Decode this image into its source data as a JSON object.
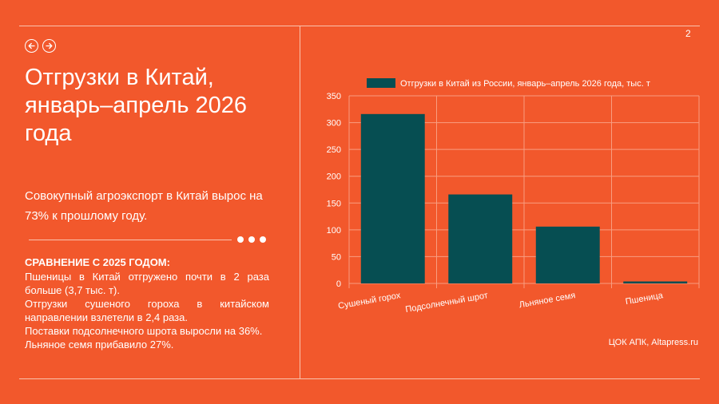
{
  "page_number": "2",
  "title": "Отгрузки в Китай, январь–апрель 2026 года",
  "subtitle": "Совокупный агроэкспорт в Китай вырос на 73% к прошлому году.",
  "comparison": {
    "heading": "СРАВНЕНИЕ С 2025 ГОДОМ:",
    "lines": [
      "Пшеницы в Китай отгружено почти в 2 раза больше (3,7 тыс. т).",
      "Отгрузки сушеного гороха в китайском направлении взлетели в 2,4 раза.",
      "Поставки подсолнечного шрота выросли на 36%.",
      "Льняное семя прибавило 27%."
    ]
  },
  "source": "ЦОК АПК, Altapress.ru",
  "colors": {
    "background": "#F2582C",
    "bar": "#064E52",
    "grid": "#F89D80",
    "text": "#FFFFFF"
  },
  "icons": {
    "prev": "arrow-left-circle-icon",
    "next": "arrow-right-circle-icon"
  },
  "chart_data": {
    "type": "bar",
    "categories": [
      "Сушеный горох",
      "Подсолнечный шрот",
      "Льняное семя",
      "Пшеница"
    ],
    "series": [
      {
        "name": "Отгрузки в Китай из России, январь–апрель 2026 года, тыс. т",
        "values": [
          316,
          166,
          106,
          3.7
        ]
      }
    ],
    "ylim": [
      0,
      350
    ],
    "yticks": [
      0,
      50,
      100,
      150,
      200,
      250,
      300,
      350
    ],
    "legend": "top",
    "grid": true
  }
}
